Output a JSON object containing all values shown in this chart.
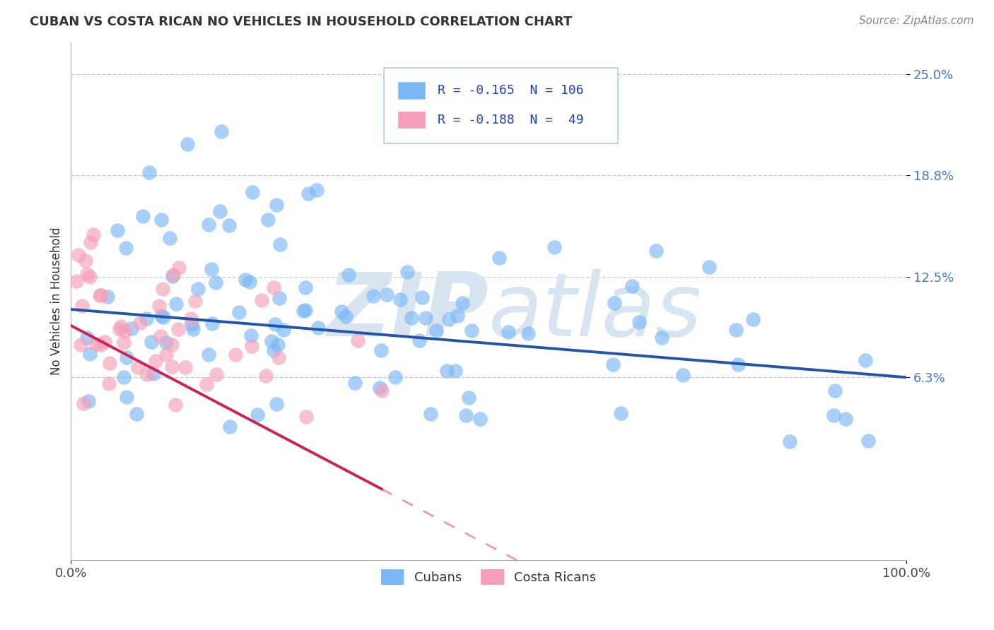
{
  "title": "CUBAN VS COSTA RICAN NO VEHICLES IN HOUSEHOLD CORRELATION CHART",
  "source": "Source: ZipAtlas.com",
  "ylabel": "No Vehicles in Household",
  "xlim": [
    0.0,
    100.0
  ],
  "ylim": [
    -5.0,
    27.0
  ],
  "ytick_positions": [
    6.3,
    12.5,
    18.8,
    25.0
  ],
  "ytick_labels": [
    "6.3%",
    "12.5%",
    "18.8%",
    "25.0%"
  ],
  "cubans_color": "#7ab8f5",
  "cubans_line_color": "#2255aa",
  "costa_ricans_color": "#f5a0b8",
  "costa_ricans_line_color": "#cc2255",
  "watermark_color": "#d8e4f0",
  "background_color": "#ffffff",
  "grid_color": "#cccccc",
  "cubans_label": "Cubans",
  "costa_ricans_label": "Costa Ricans",
  "cubans_R": "-0.165",
  "cubans_N": "106",
  "costa_ricans_R": "-0.188",
  "costa_ricans_N": "49"
}
